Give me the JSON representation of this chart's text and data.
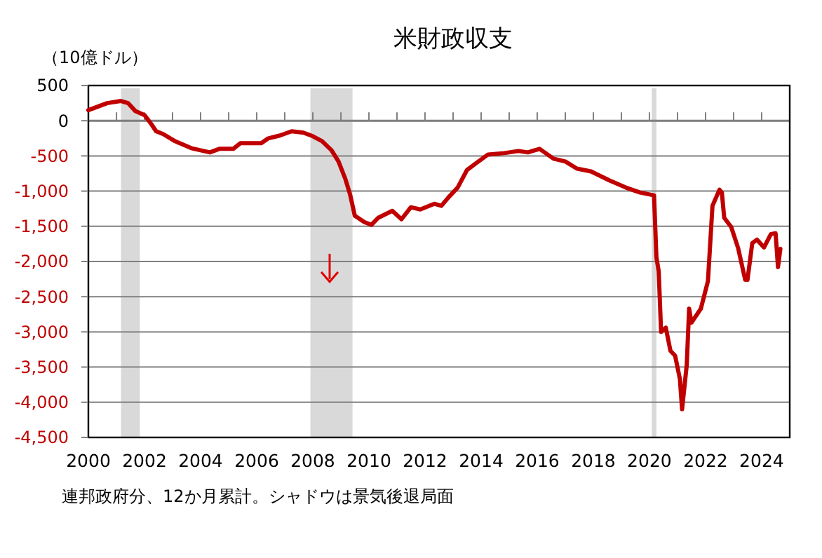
{
  "chart_data": {
    "type": "line",
    "title": "米財政収支",
    "ylabel": "（10億ドル）",
    "annotations": [
      "連邦政府分、12か月累計。シャドウは景気後退局面"
    ],
    "x": [
      "2000-01",
      "2000-09",
      "2001-03",
      "2001-06",
      "2001-09",
      "2002-01",
      "2002-04",
      "2002-06",
      "2002-09",
      "2003-02",
      "2003-09",
      "2004-05",
      "2004-09",
      "2005-03",
      "2005-06",
      "2006-03",
      "2006-06",
      "2006-11",
      "2007-04",
      "2007-09",
      "2008-01",
      "2008-05",
      "2008-09",
      "2008-12",
      "2009-03",
      "2009-05",
      "2009-07",
      "2009-11",
      "2010-02",
      "2010-05",
      "2010-11",
      "2011-03",
      "2011-07",
      "2011-11",
      "2012-05",
      "2012-08",
      "2012-11",
      "2013-03",
      "2013-07",
      "2013-11",
      "2014-04",
      "2014-11",
      "2015-05",
      "2015-09",
      "2016-02",
      "2016-08",
      "2017-01",
      "2017-06",
      "2017-12",
      "2018-08",
      "2019-03",
      "2019-09",
      "2020-03",
      "2020-04",
      "2020-05",
      "2020-06",
      "2020-08",
      "2020-10",
      "2020-12",
      "2021-02",
      "2021-03",
      "2021-05",
      "2021-06",
      "2021-07",
      "2021-11",
      "2022-02",
      "2022-04",
      "2022-07",
      "2022-08",
      "2022-09",
      "2022-12",
      "2023-03",
      "2023-06",
      "2023-07",
      "2023-09",
      "2023-11",
      "2024-02",
      "2024-05",
      "2024-07",
      "2024-08",
      "2024-09"
    ],
    "series": [
      {
        "color": "#c00000",
        "values": [
          150,
          250,
          280,
          250,
          140,
          80,
          -50,
          -150,
          -190,
          -290,
          -390,
          -450,
          -400,
          -400,
          -320,
          -320,
          -250,
          -210,
          -150,
          -170,
          -220,
          -290,
          -420,
          -580,
          -830,
          -1050,
          -1350,
          -1440,
          -1480,
          -1380,
          -1280,
          -1400,
          -1230,
          -1260,
          -1180,
          -1210,
          -1090,
          -950,
          -700,
          -600,
          -480,
          -460,
          -430,
          -450,
          -400,
          -540,
          -580,
          -680,
          -720,
          -850,
          -950,
          -1020,
          -1060,
          -1940,
          -2140,
          -3000,
          -2940,
          -3270,
          -3340,
          -3670,
          -4100,
          -3470,
          -2670,
          -2870,
          -2670,
          -2280,
          -1210,
          -980,
          -1020,
          -1380,
          -1510,
          -1810,
          -2260,
          -2260,
          -1740,
          -1690,
          -1800,
          -1610,
          -1600,
          -2080,
          -1820
        ]
      }
    ],
    "xlim": [
      "2000",
      "2025"
    ],
    "xticks": [
      {
        "value": "2000",
        "label": "2000"
      },
      {
        "value": "2001",
        "label": null
      },
      {
        "value": "2002",
        "label": "2002"
      },
      {
        "value": "2003",
        "label": null
      },
      {
        "value": "2004",
        "label": "2004"
      },
      {
        "value": "2005",
        "label": null
      },
      {
        "value": "2006",
        "label": "2006"
      },
      {
        "value": "2007",
        "label": null
      },
      {
        "value": "2008",
        "label": "2008"
      },
      {
        "value": "2009",
        "label": null
      },
      {
        "value": "2010",
        "label": "2010"
      },
      {
        "value": "2011",
        "label": null
      },
      {
        "value": "2012",
        "label": "2012"
      },
      {
        "value": "2013",
        "label": null
      },
      {
        "value": "2014",
        "label": "2014"
      },
      {
        "value": "2015",
        "label": null
      },
      {
        "value": "2016",
        "label": "2016"
      },
      {
        "value": "2017",
        "label": null
      },
      {
        "value": "2018",
        "label": "2018"
      },
      {
        "value": "2019",
        "label": null
      },
      {
        "value": "2020",
        "label": "2020"
      },
      {
        "value": "2021",
        "label": null
      },
      {
        "value": "2022",
        "label": "2022"
      },
      {
        "value": "2023",
        "label": null
      },
      {
        "value": "2024",
        "label": "2024"
      },
      {
        "value": "2025",
        "label": null
      }
    ],
    "ylim": [
      -4500,
      500
    ],
    "yticks": [
      500,
      0,
      {
        "value": -500,
        "label": "-500"
      },
      {
        "value": -1000,
        "label": "-1,000"
      },
      {
        "value": -1500,
        "label": "-1,500"
      },
      {
        "value": -2000,
        "label": "-2,000"
      },
      {
        "value": -2500,
        "label": "-2,500"
      },
      {
        "value": -3000,
        "label": "-3,000"
      },
      {
        "value": -3500,
        "label": "-3,500"
      },
      {
        "value": -4000,
        "label": "-4,000"
      },
      {
        "value": -4500,
        "label": "-4,500"
      }
    ],
    "grid": "y",
    "bands": [
      {
        "axis": "x",
        "from": "2001-03",
        "to": "2001-11",
        "color": "#d9d9d9"
      },
      {
        "axis": "x",
        "from": "2007-12",
        "to": "2009-06",
        "color": "#d9d9d9"
      },
      {
        "axis": "x",
        "from": "2020-02",
        "to": "2020-04",
        "color": "#d9d9d9"
      }
    ]
  }
}
